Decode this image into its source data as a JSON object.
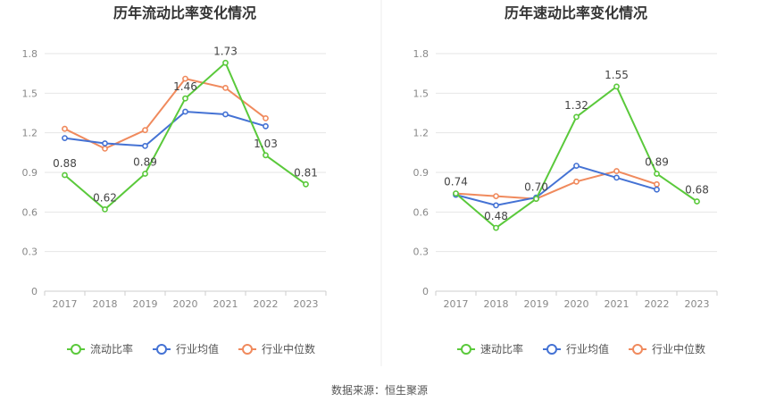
{
  "source_text": "数据来源：恒生聚源",
  "colors": {
    "company": "#5ac93b",
    "industry_avg": "#4472d4",
    "industry_median": "#f08a5d",
    "grid": "#e6e6e6",
    "axis": "#cccccc",
    "tick": "#888888",
    "title": "#333333",
    "label": "#444444"
  },
  "chart_data": [
    {
      "type": "line",
      "title": "历年流动比率变化情况",
      "categories": [
        "2017",
        "2018",
        "2019",
        "2020",
        "2021",
        "2022",
        "2023"
      ],
      "ylim": [
        0,
        1.8
      ],
      "yticks": [
        "0",
        "0.3",
        "0.6",
        "0.9",
        "1.2",
        "1.5",
        "1.8"
      ],
      "grid": true,
      "legend_position": "bottom",
      "series": [
        {
          "name": "流动比率",
          "values": [
            0.88,
            0.62,
            0.89,
            1.46,
            1.73,
            1.03,
            0.81
          ],
          "labels": [
            "0.88",
            "0.62",
            "0.89",
            "1.46",
            "1.73",
            "1.03",
            "0.81"
          ]
        },
        {
          "name": "行业均值",
          "values": [
            1.16,
            1.12,
            1.1,
            1.36,
            1.34,
            1.25,
            null
          ]
        },
        {
          "name": "行业中位数",
          "values": [
            1.23,
            1.08,
            1.22,
            1.61,
            1.54,
            1.31,
            null
          ]
        }
      ]
    },
    {
      "type": "line",
      "title": "历年速动比率变化情况",
      "categories": [
        "2017",
        "2018",
        "2019",
        "2020",
        "2021",
        "2022",
        "2023"
      ],
      "ylim": [
        0,
        1.8
      ],
      "yticks": [
        "0",
        "0.3",
        "0.6",
        "0.9",
        "1.2",
        "1.5",
        "1.8"
      ],
      "grid": true,
      "legend_position": "bottom",
      "series": [
        {
          "name": "速动比率",
          "values": [
            0.74,
            0.48,
            0.7,
            1.32,
            1.55,
            0.89,
            0.68
          ],
          "labels": [
            "0.74",
            "0.48",
            "0.70",
            "1.32",
            "1.55",
            "0.89",
            "0.68"
          ]
        },
        {
          "name": "行业均值",
          "values": [
            0.73,
            0.65,
            0.71,
            0.95,
            0.86,
            0.77,
            null
          ]
        },
        {
          "name": "行业中位数",
          "values": [
            0.74,
            0.72,
            0.7,
            0.83,
            0.91,
            0.81,
            null
          ]
        }
      ]
    }
  ]
}
